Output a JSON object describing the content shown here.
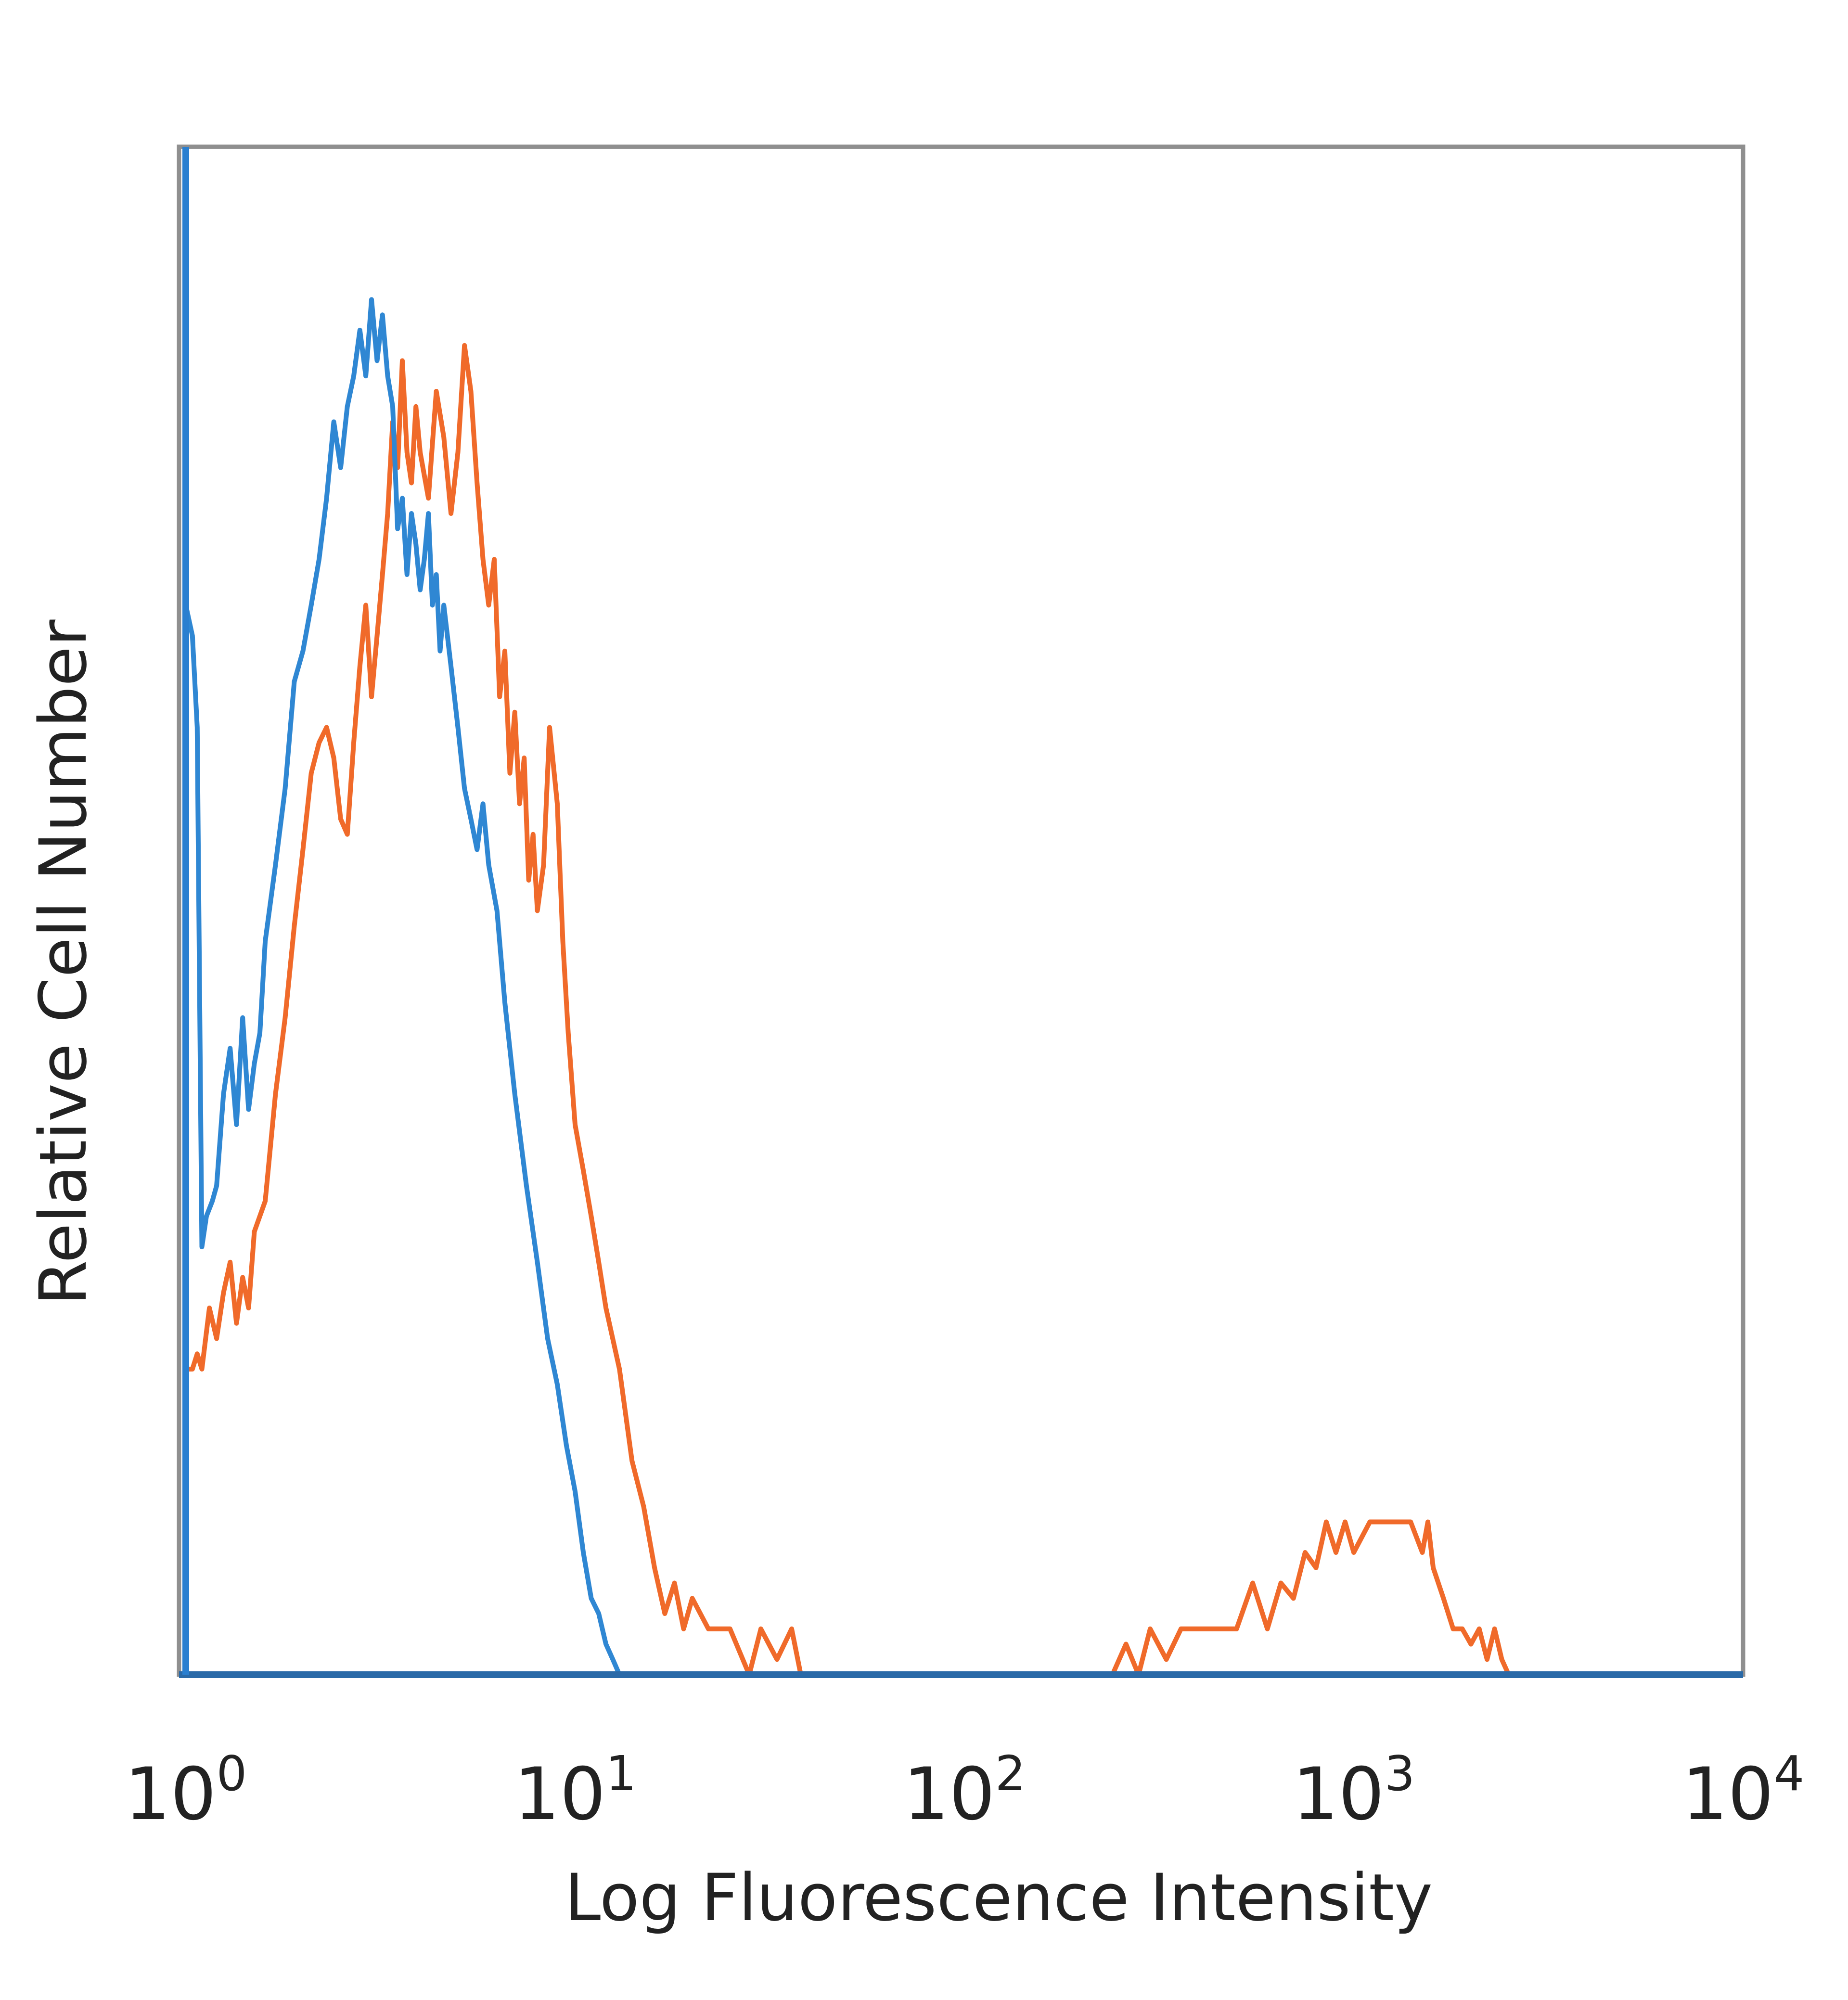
{
  "chart_data": {
    "type": "line",
    "xlabel": "Log Fluorescence Intensity",
    "ylabel": "Relative Cell Number",
    "x_scale": "log",
    "xlim": [
      1,
      10000
    ],
    "ylim": [
      0,
      100
    ],
    "grid": false,
    "legend": "none",
    "x_ticks": [
      {
        "base": "10",
        "exp": "0",
        "value": 1
      },
      {
        "base": "10",
        "exp": "1",
        "value": 10
      },
      {
        "base": "10",
        "exp": "2",
        "value": 100
      },
      {
        "base": "10",
        "exp": "3",
        "value": 1000
      },
      {
        "base": "10",
        "exp": "4",
        "value": 10000
      }
    ],
    "series": [
      {
        "color": "#2f87d3",
        "points": [
          [
            1.0,
            100
          ],
          [
            1.0,
            70
          ],
          [
            1.04,
            68
          ],
          [
            1.07,
            62
          ],
          [
            1.1,
            28
          ],
          [
            1.13,
            30
          ],
          [
            1.17,
            31
          ],
          [
            1.2,
            32
          ],
          [
            1.25,
            38
          ],
          [
            1.3,
            41
          ],
          [
            1.35,
            36
          ],
          [
            1.4,
            43
          ],
          [
            1.45,
            37
          ],
          [
            1.5,
            40
          ],
          [
            1.55,
            42
          ],
          [
            1.6,
            48
          ],
          [
            1.7,
            53
          ],
          [
            1.8,
            58
          ],
          [
            1.9,
            65
          ],
          [
            2.0,
            67
          ],
          [
            2.1,
            70
          ],
          [
            2.2,
            73
          ],
          [
            2.3,
            77
          ],
          [
            2.4,
            82
          ],
          [
            2.5,
            79
          ],
          [
            2.6,
            83
          ],
          [
            2.7,
            85
          ],
          [
            2.8,
            88
          ],
          [
            2.9,
            85
          ],
          [
            3.0,
            90
          ],
          [
            3.1,
            86
          ],
          [
            3.2,
            89
          ],
          [
            3.3,
            85
          ],
          [
            3.4,
            83
          ],
          [
            3.5,
            75
          ],
          [
            3.6,
            77
          ],
          [
            3.7,
            72
          ],
          [
            3.8,
            76
          ],
          [
            3.9,
            74
          ],
          [
            4.0,
            71
          ],
          [
            4.1,
            73
          ],
          [
            4.2,
            76
          ],
          [
            4.3,
            70
          ],
          [
            4.4,
            72
          ],
          [
            4.5,
            67
          ],
          [
            4.6,
            70
          ],
          [
            4.8,
            66
          ],
          [
            5.0,
            62
          ],
          [
            5.2,
            58
          ],
          [
            5.4,
            56
          ],
          [
            5.6,
            54
          ],
          [
            5.8,
            57
          ],
          [
            6.0,
            53
          ],
          [
            6.3,
            50
          ],
          [
            6.6,
            44
          ],
          [
            7.0,
            38
          ],
          [
            7.5,
            32
          ],
          [
            8.0,
            27
          ],
          [
            8.5,
            22
          ],
          [
            9.0,
            19
          ],
          [
            9.5,
            15
          ],
          [
            10.0,
            12
          ],
          [
            10.5,
            8
          ],
          [
            11.0,
            5
          ],
          [
            11.5,
            4
          ],
          [
            12.0,
            2
          ],
          [
            12.5,
            1
          ],
          [
            13.0,
            0
          ],
          [
            10000,
            0
          ]
        ]
      },
      {
        "color": "#f06a2a",
        "points": [
          [
            1.0,
            0
          ],
          [
            1.0,
            20
          ],
          [
            1.04,
            20
          ],
          [
            1.07,
            21
          ],
          [
            1.1,
            20
          ],
          [
            1.15,
            24
          ],
          [
            1.2,
            22
          ],
          [
            1.25,
            25
          ],
          [
            1.3,
            27
          ],
          [
            1.35,
            23
          ],
          [
            1.4,
            26
          ],
          [
            1.45,
            24
          ],
          [
            1.5,
            29
          ],
          [
            1.6,
            31
          ],
          [
            1.7,
            38
          ],
          [
            1.8,
            43
          ],
          [
            1.9,
            49
          ],
          [
            2.0,
            54
          ],
          [
            2.1,
            59
          ],
          [
            2.2,
            61
          ],
          [
            2.3,
            62
          ],
          [
            2.4,
            60
          ],
          [
            2.5,
            56
          ],
          [
            2.6,
            55
          ],
          [
            2.7,
            61
          ],
          [
            2.8,
            66
          ],
          [
            2.9,
            70
          ],
          [
            3.0,
            64
          ],
          [
            3.1,
            68
          ],
          [
            3.2,
            72
          ],
          [
            3.3,
            76
          ],
          [
            3.4,
            82
          ],
          [
            3.5,
            79
          ],
          [
            3.6,
            86
          ],
          [
            3.7,
            80
          ],
          [
            3.8,
            78
          ],
          [
            3.9,
            83
          ],
          [
            4.0,
            80
          ],
          [
            4.2,
            77
          ],
          [
            4.4,
            84
          ],
          [
            4.6,
            81
          ],
          [
            4.8,
            76
          ],
          [
            5.0,
            80
          ],
          [
            5.2,
            87
          ],
          [
            5.4,
            84
          ],
          [
            5.6,
            78
          ],
          [
            5.8,
            73
          ],
          [
            6.0,
            70
          ],
          [
            6.2,
            73
          ],
          [
            6.4,
            64
          ],
          [
            6.6,
            67
          ],
          [
            6.8,
            59
          ],
          [
            7.0,
            63
          ],
          [
            7.2,
            57
          ],
          [
            7.4,
            60
          ],
          [
            7.6,
            52
          ],
          [
            7.8,
            55
          ],
          [
            8.0,
            50
          ],
          [
            8.3,
            53
          ],
          [
            8.6,
            62
          ],
          [
            9.0,
            57
          ],
          [
            9.3,
            48
          ],
          [
            9.6,
            42
          ],
          [
            10.0,
            36
          ],
          [
            10.5,
            33
          ],
          [
            11.0,
            30
          ],
          [
            11.5,
            27
          ],
          [
            12.0,
            24
          ],
          [
            13.0,
            20
          ],
          [
            14.0,
            14
          ],
          [
            15.0,
            11
          ],
          [
            16.0,
            7
          ],
          [
            17.0,
            4
          ],
          [
            18.0,
            6
          ],
          [
            19.0,
            3
          ],
          [
            20.0,
            5
          ],
          [
            22.0,
            3
          ],
          [
            25.0,
            3
          ],
          [
            28.0,
            0
          ],
          [
            30.0,
            3
          ],
          [
            33.0,
            1
          ],
          [
            36.0,
            3
          ],
          [
            38.0,
            0
          ],
          [
            240,
            0
          ],
          [
            260,
            2
          ],
          [
            280,
            0
          ],
          [
            300,
            3
          ],
          [
            330,
            1
          ],
          [
            360,
            3
          ],
          [
            400,
            3
          ],
          [
            450,
            3
          ],
          [
            500,
            3
          ],
          [
            550,
            6
          ],
          [
            600,
            3
          ],
          [
            650,
            6
          ],
          [
            700,
            5
          ],
          [
            750,
            8
          ],
          [
            800,
            7
          ],
          [
            850,
            10
          ],
          [
            900,
            8
          ],
          [
            950,
            10
          ],
          [
            1000,
            8
          ],
          [
            1100,
            10
          ],
          [
            1200,
            10
          ],
          [
            1300,
            10
          ],
          [
            1400,
            10
          ],
          [
            1500,
            8
          ],
          [
            1550,
            10
          ],
          [
            1600,
            7
          ],
          [
            1700,
            5
          ],
          [
            1800,
            3
          ],
          [
            1900,
            3
          ],
          [
            2000,
            2
          ],
          [
            2100,
            3
          ],
          [
            2200,
            1
          ],
          [
            2300,
            3
          ],
          [
            2400,
            1
          ],
          [
            2500,
            0
          ],
          [
            10000,
            0
          ]
        ]
      }
    ]
  }
}
